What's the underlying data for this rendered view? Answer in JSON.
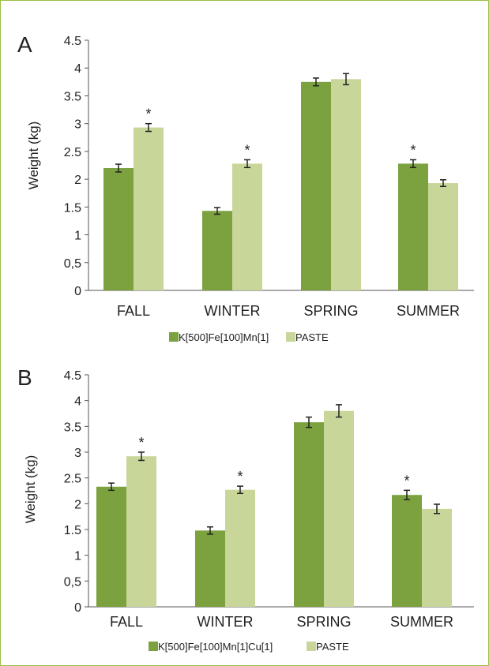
{
  "chart_data": [
    {
      "panel_label": "A",
      "type": "bar",
      "categories": [
        "FALL",
        "WINTER",
        "SPRING",
        "SUMMER"
      ],
      "ylabel": "Weight (kg)",
      "ylim": [
        0,
        4.5
      ],
      "yticks": [
        "0",
        "0,5",
        "1",
        "1.5",
        "2",
        "2.5",
        "3",
        "3.5",
        "4",
        "4.5"
      ],
      "grid": false,
      "legend_position": "bottom",
      "series": [
        {
          "name": "K[500]Fe[100]Mn[1]",
          "color": "#7ba23f",
          "values": [
            2.2,
            1.43,
            3.75,
            2.28
          ],
          "errors": [
            0.07,
            0.06,
            0.07,
            0.07
          ]
        },
        {
          "name": "PASTE",
          "color": "#c8d69a",
          "values": [
            2.93,
            2.28,
            3.8,
            1.93
          ],
          "errors": [
            0.07,
            0.07,
            0.1,
            0.06
          ]
        }
      ],
      "annotations": [
        {
          "category": "FALL",
          "series": 1,
          "text": "*"
        },
        {
          "category": "WINTER",
          "series": 1,
          "text": "*"
        },
        {
          "category": "SUMMER",
          "series": 0,
          "text": "*"
        }
      ]
    },
    {
      "panel_label": "B",
      "type": "bar",
      "categories": [
        "FALL",
        "WINTER",
        "SPRING",
        "SUMMER"
      ],
      "ylabel": "Weight (kg)",
      "ylim": [
        0,
        4.5
      ],
      "yticks": [
        "0",
        "0,5",
        "1",
        "1.5",
        "2",
        "2.5",
        "3",
        "3.5",
        "4",
        "4.5"
      ],
      "grid": false,
      "legend_position": "bottom",
      "series": [
        {
          "name": "K[500]Fe[100]Mn[1]Cu[1]",
          "color": "#7ba23f",
          "values": [
            2.33,
            1.48,
            3.58,
            2.17
          ],
          "errors": [
            0.07,
            0.07,
            0.1,
            0.09
          ]
        },
        {
          "name": "PASTE",
          "color": "#c8d69a",
          "values": [
            2.92,
            2.27,
            3.8,
            1.9
          ],
          "errors": [
            0.08,
            0.07,
            0.12,
            0.09
          ]
        }
      ],
      "annotations": [
        {
          "category": "FALL",
          "series": 1,
          "text": "*"
        },
        {
          "category": "WINTER",
          "series": 1,
          "text": "*"
        },
        {
          "category": "SUMMER",
          "series": 0,
          "text": "*"
        }
      ]
    }
  ]
}
